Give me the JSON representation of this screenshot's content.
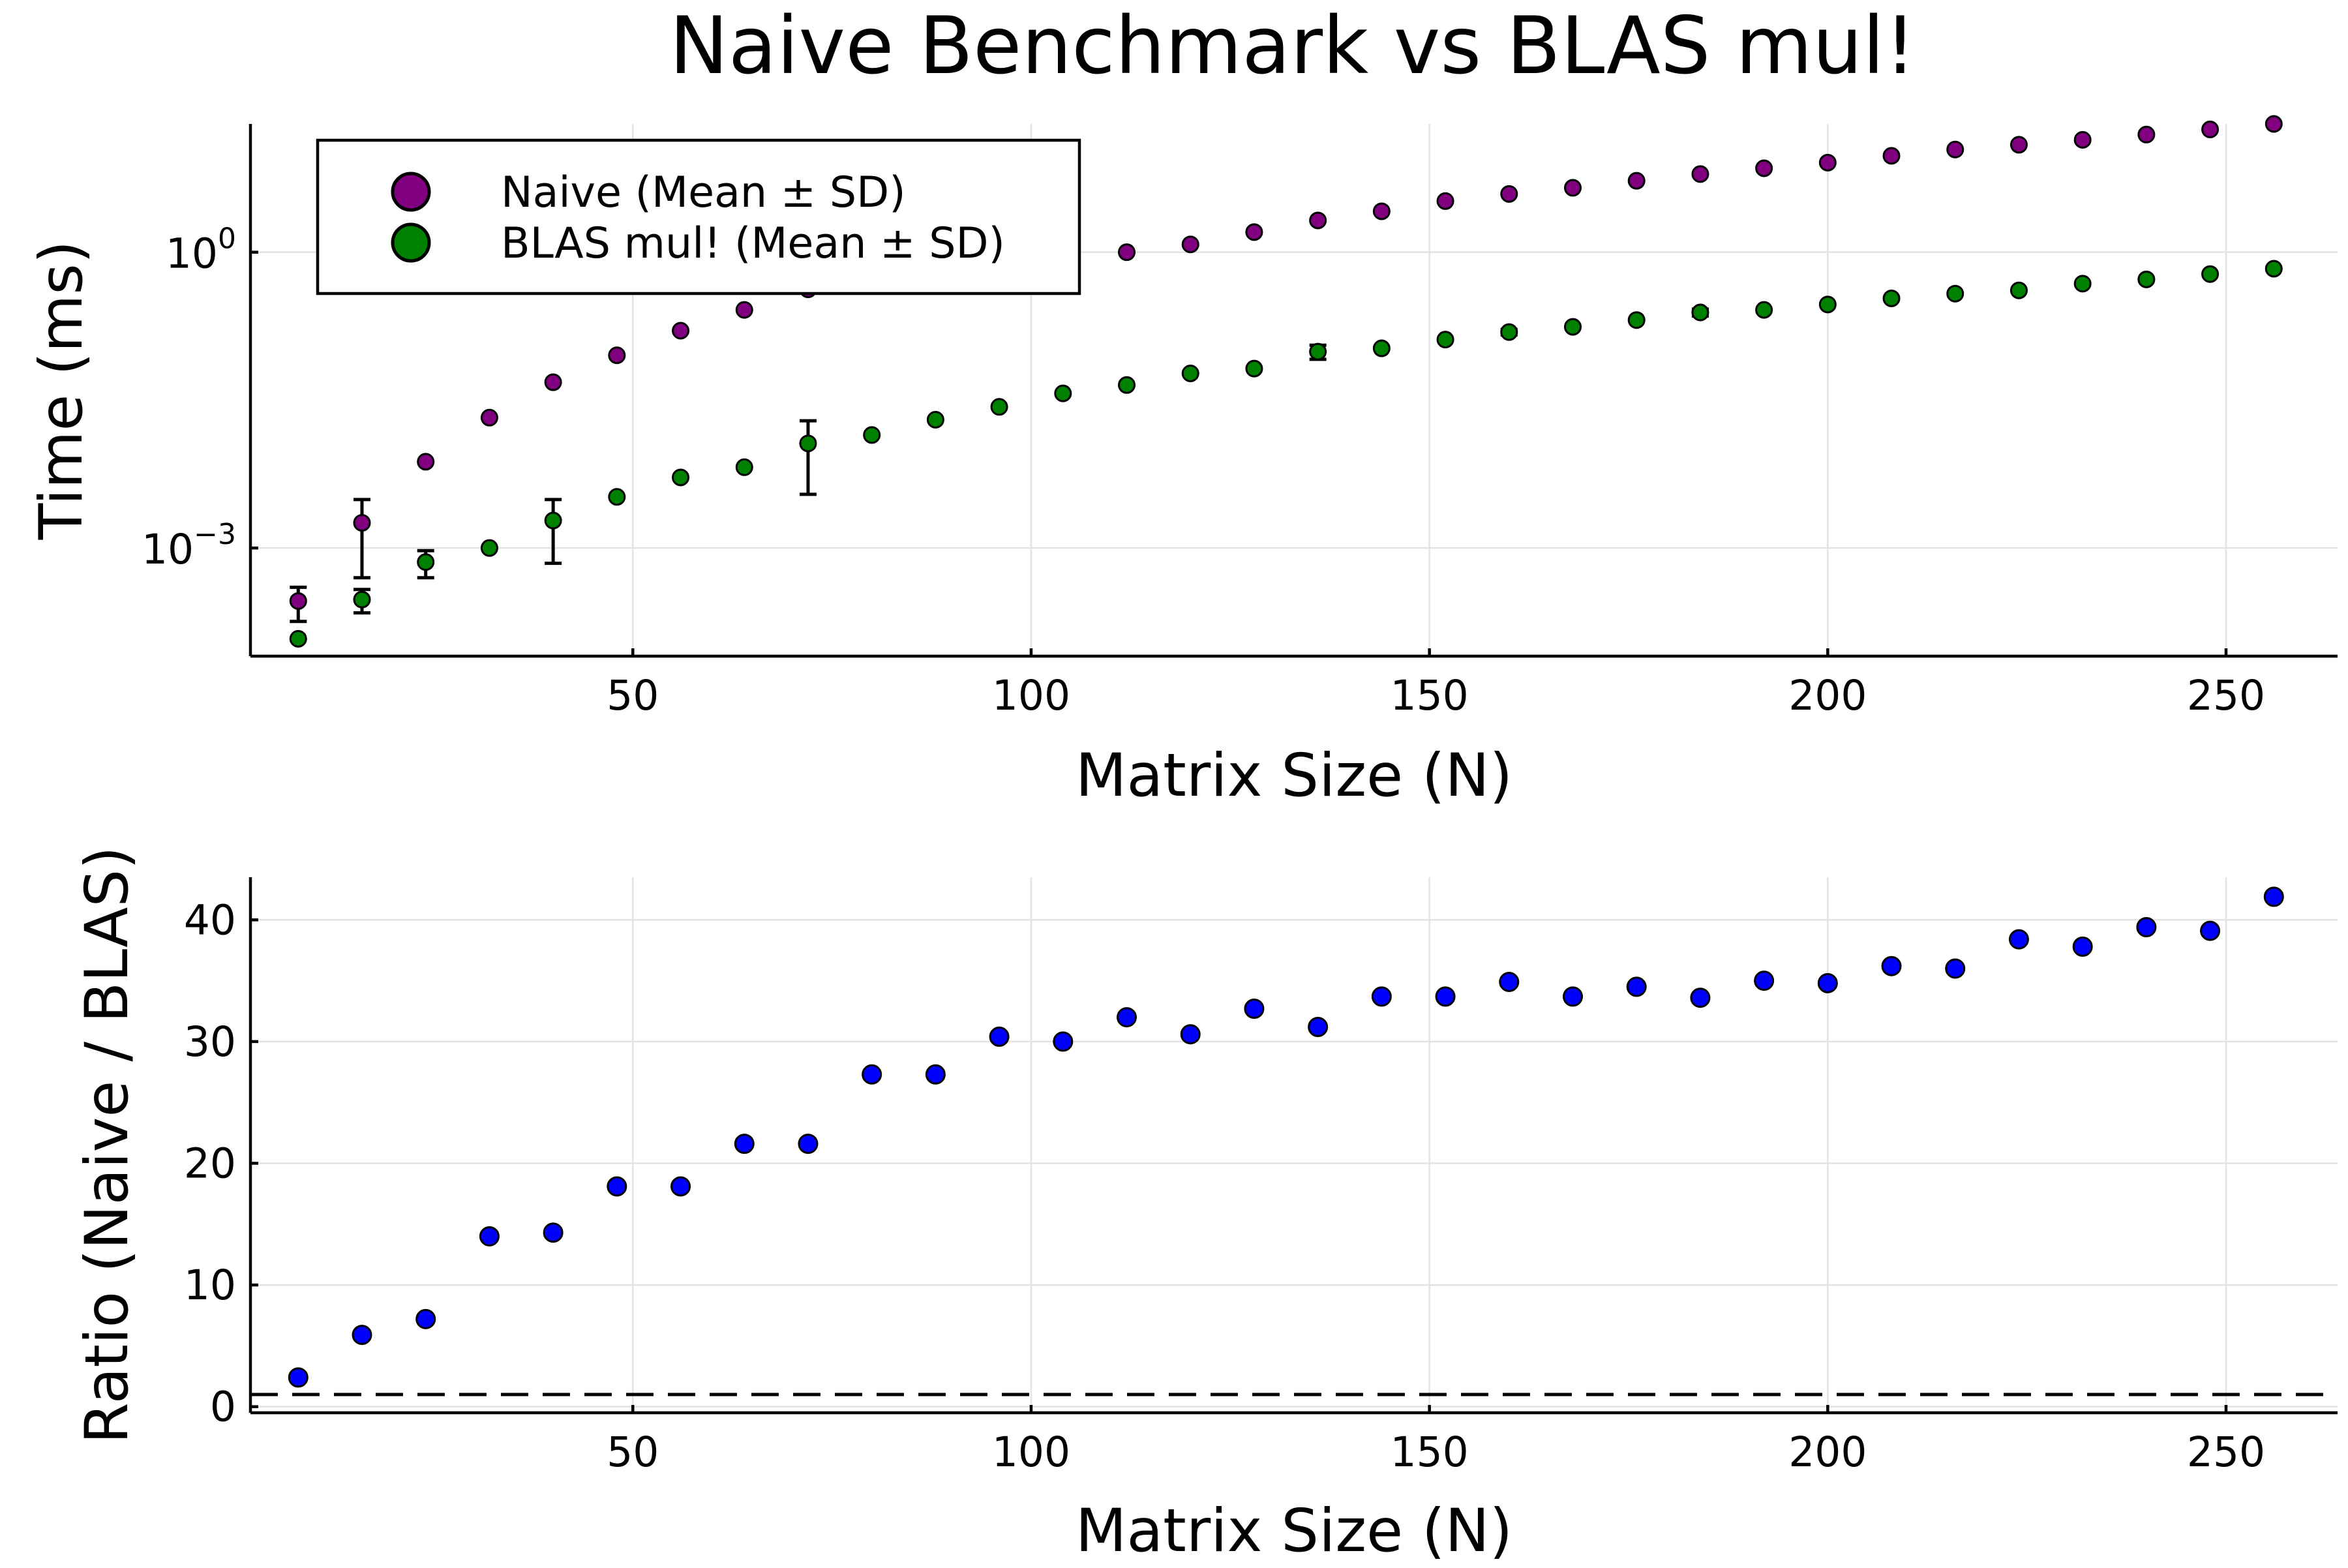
{
  "title": "Naive Benchmark vs BLAS mul!",
  "chart_data": [
    {
      "type": "scatter",
      "xlabel": "Matrix Size (N)",
      "ylabel": "Time (ms)",
      "y_scale": "log10",
      "xlim": [
        2,
        264
      ],
      "ylim": [
        8e-05,
        20
      ],
      "x_ticks": [
        50,
        100,
        150,
        200,
        250
      ],
      "y_ticks": [
        0.001,
        1
      ],
      "y_tick_labels": [
        {
          "base": "10",
          "exp": "−3"
        },
        {
          "base": "10",
          "exp": "0"
        }
      ],
      "grid": true,
      "legend_position": "top-left",
      "x": [
        8,
        16,
        24,
        32,
        40,
        48,
        56,
        64,
        72,
        80,
        88,
        96,
        104,
        112,
        120,
        128,
        136,
        144,
        152,
        160,
        168,
        176,
        184,
        192,
        200,
        208,
        216,
        224,
        232,
        240,
        248,
        256
      ],
      "series": [
        {
          "name": "Naive (Mean ± SD)",
          "color": "#800080",
          "values": [
            0.00029,
            0.0018,
            0.0075,
            0.021,
            0.048,
            0.09,
            0.16,
            0.26,
            0.42,
            0.68,
            0.86,
            1.08,
            1.25,
            1.0,
            1.2,
            1.6,
            2.1,
            2.6,
            3.3,
            3.9,
            4.5,
            5.3,
            6.2,
            7.1,
            8.1,
            9.5,
            11.0,
            12.3,
            13.8,
            15.6,
            17.6,
            20.0
          ],
          "error": [
            0.00011,
            0.0013,
            0,
            0,
            0,
            0,
            0,
            0,
            0,
            0,
            0,
            0,
            0,
            0,
            0,
            0,
            0,
            0,
            0,
            0,
            0,
            0,
            0,
            0,
            0,
            0,
            0,
            0,
            0,
            0,
            0,
            0
          ]
        },
        {
          "name": "BLAS mul! (Mean ± SD)",
          "color": "#008000",
          "values": [
            0.00012,
            0.0003,
            0.00072,
            0.001,
            0.0019,
            0.0033,
            0.0052,
            0.0066,
            0.0115,
            0.014,
            0.02,
            0.027,
            0.037,
            0.045,
            0.059,
            0.066,
            0.098,
            0.106,
            0.13,
            0.155,
            0.175,
            0.205,
            0.245,
            0.26,
            0.295,
            0.34,
            0.38,
            0.41,
            0.48,
            0.53,
            0.6,
            0.68
          ],
          "error": [
            0,
            8e-05,
            0.00022,
            0,
            0.0012,
            0,
            0,
            0,
            0.008,
            0,
            0,
            0,
            0,
            0,
            0,
            0,
            0.016,
            0,
            0,
            0.01,
            0,
            0,
            0.02,
            0,
            0,
            0,
            0,
            0,
            0,
            0,
            0,
            0
          ]
        }
      ]
    },
    {
      "type": "scatter",
      "xlabel": "Matrix Size (N)",
      "ylabel": "Ratio (Naive / BLAS)",
      "xlim": [
        2,
        264
      ],
      "ylim": [
        -0.5,
        43.5
      ],
      "x_ticks": [
        50,
        100,
        150,
        200,
        250
      ],
      "y_ticks": [
        0,
        10,
        20,
        30,
        40
      ],
      "grid": true,
      "reference_line": {
        "y": 1,
        "style": "dashed",
        "color": "#000000"
      },
      "x": [
        8,
        16,
        24,
        32,
        40,
        48,
        56,
        64,
        72,
        80,
        88,
        96,
        104,
        112,
        120,
        128,
        136,
        144,
        152,
        160,
        168,
        176,
        184,
        192,
        200,
        208,
        216,
        224,
        232,
        240,
        248,
        256
      ],
      "series": [
        {
          "color": "#0000ff",
          "values": [
            2.4,
            5.9,
            7.2,
            14.0,
            14.3,
            18.1,
            18.1,
            21.6,
            21.6,
            27.3,
            27.3,
            30.4,
            30.0,
            32.0,
            30.6,
            32.7,
            31.2,
            33.7,
            33.7,
            34.9,
            33.7,
            34.5,
            33.6,
            35.0,
            34.8,
            36.2,
            36.0,
            38.4,
            37.8,
            39.4,
            39.1,
            41.9
          ]
        }
      ]
    }
  ]
}
